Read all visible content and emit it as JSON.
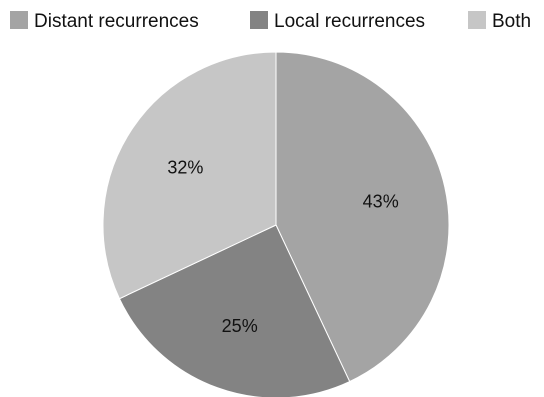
{
  "chart_data": {
    "type": "pie",
    "legend_position": "top",
    "slices": [
      {
        "label": "Distant recurrences",
        "value": 43,
        "display": "43%",
        "color": "#a4a4a4"
      },
      {
        "label": "Local recurrences",
        "value": 25,
        "display": "25%",
        "color": "#838383"
      },
      {
        "label": "Both",
        "value": 32,
        "display": "32%",
        "color": "#c6c6c6"
      }
    ],
    "start_direction": "12 o'clock",
    "order": "clockwise"
  }
}
